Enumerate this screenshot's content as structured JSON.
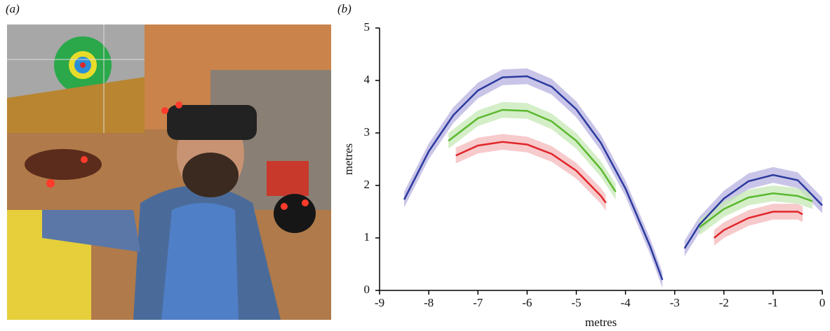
{
  "panel_labels": [
    "(a)",
    "(b)"
  ],
  "chart_data": {
    "type": "line",
    "xlabel": "metres",
    "ylabel": "metres",
    "xlim": [
      -9,
      0
    ],
    "ylim": [
      0,
      5
    ],
    "xticks": [
      -9,
      -8,
      -7,
      -6,
      -5,
      -4,
      -3,
      -2,
      -1,
      0
    ],
    "yticks": [
      0,
      1,
      2,
      3,
      4,
      5
    ],
    "series": [
      {
        "color": "#2b3a9e",
        "band_color": "#b7b2e0",
        "spread": 0.15,
        "x": [
          -8.5,
          -8,
          -7.5,
          -7,
          -6.5,
          -6,
          -5.5,
          -5,
          -4.5,
          -4,
          -3.5,
          -3.25,
          -3,
          -2.8,
          -2.5,
          -2,
          -1.5,
          -1,
          -0.5,
          0
        ],
        "values": [
          1.73,
          2.65,
          3.34,
          3.81,
          4.06,
          4.08,
          3.88,
          3.45,
          2.81,
          1.94,
          0.84,
          0.2,
          null,
          0.8,
          1.25,
          1.75,
          2.08,
          2.2,
          2.1,
          1.62
        ]
      },
      {
        "color": "#5bb82e",
        "band_color": "#c6e8b6",
        "spread": 0.15,
        "x": [
          -7.6,
          -7,
          -6.5,
          -6,
          -5.5,
          -5,
          -4.5,
          -4.2,
          -3,
          -2.5,
          -2,
          -1.5,
          -1,
          -0.5,
          -0.2
        ],
        "values": [
          2.85,
          3.28,
          3.44,
          3.42,
          3.22,
          2.85,
          2.31,
          1.88,
          null,
          1.2,
          1.55,
          1.77,
          1.85,
          1.8,
          1.7
        ]
      },
      {
        "color": "#e0262b",
        "band_color": "#f4b8bb",
        "spread": 0.15,
        "x": [
          -7.45,
          -7,
          -6.5,
          -6,
          -5.5,
          -5,
          -4.5,
          -4.4,
          -3,
          -2.2,
          -2,
          -1.5,
          -1,
          -0.5,
          -0.4
        ],
        "values": [
          2.57,
          2.76,
          2.83,
          2.78,
          2.6,
          2.28,
          1.8,
          1.67,
          null,
          1.0,
          1.15,
          1.38,
          1.5,
          1.5,
          1.45
        ]
      }
    ]
  }
}
